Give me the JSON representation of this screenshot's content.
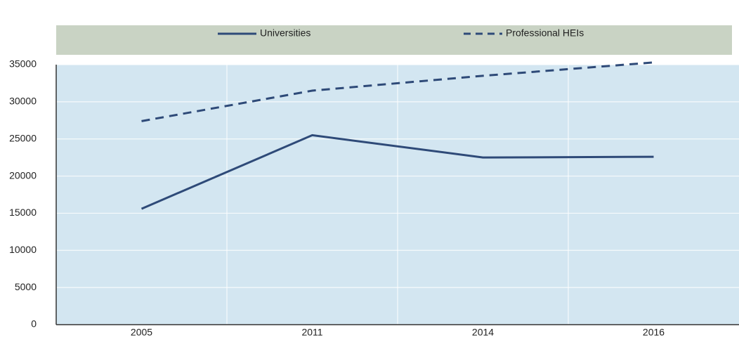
{
  "chart_data": {
    "type": "line",
    "categories": [
      "2005",
      "2011",
      "2014",
      "2016"
    ],
    "series": [
      {
        "name": "Universities",
        "color": "#2e4a78",
        "dash": false,
        "values": [
          15600,
          25500,
          22500,
          22600
        ]
      },
      {
        "name": "Professional HEIs",
        "color": "#2e4a78",
        "dash": true,
        "values": [
          27400,
          31500,
          33500,
          35300
        ]
      }
    ],
    "ylim": [
      0,
      35000
    ],
    "yticks": [
      0,
      5000,
      10000,
      15000,
      20000,
      25000,
      30000,
      35000
    ],
    "grid": true,
    "legend": "top"
  }
}
